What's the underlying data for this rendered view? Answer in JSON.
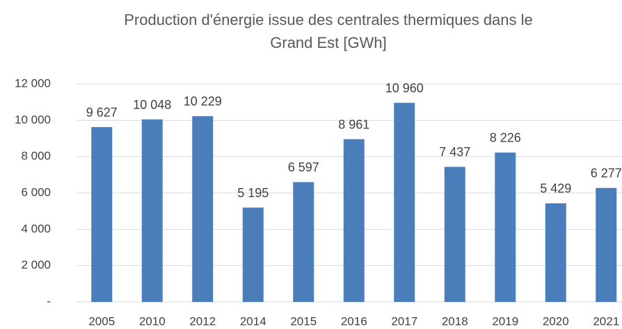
{
  "chart_data": {
    "type": "bar",
    "title": [
      "Production d'énergie issue des centrales thermiques dans le",
      "Grand Est [GWh]"
    ],
    "categories": [
      "2005",
      "2010",
      "2012",
      "2014",
      "2015",
      "2016",
      "2017",
      "2018",
      "2019",
      "2020",
      "2021"
    ],
    "values": [
      9627,
      10048,
      10229,
      5195,
      6597,
      8961,
      10960,
      7437,
      8226,
      5429,
      6277
    ],
    "value_labels": [
      "9 627",
      "10 048",
      "10 229",
      "5 195",
      "6 597",
      "8 961",
      "10 960",
      "7 437",
      "8 226",
      "5 429",
      "6 277"
    ],
    "color": "#4a7ebb",
    "ylim": [
      0,
      12000
    ],
    "yticks": [
      {
        "value": 0,
        "label": "-"
      },
      {
        "value": 2000,
        "label": "2 000"
      },
      {
        "value": 4000,
        "label": "4 000"
      },
      {
        "value": 6000,
        "label": "6 000"
      },
      {
        "value": 8000,
        "label": "8 000"
      },
      {
        "value": 10000,
        "label": "10 000"
      },
      {
        "value": 12000,
        "label": "12 000"
      }
    ],
    "grid": true
  }
}
